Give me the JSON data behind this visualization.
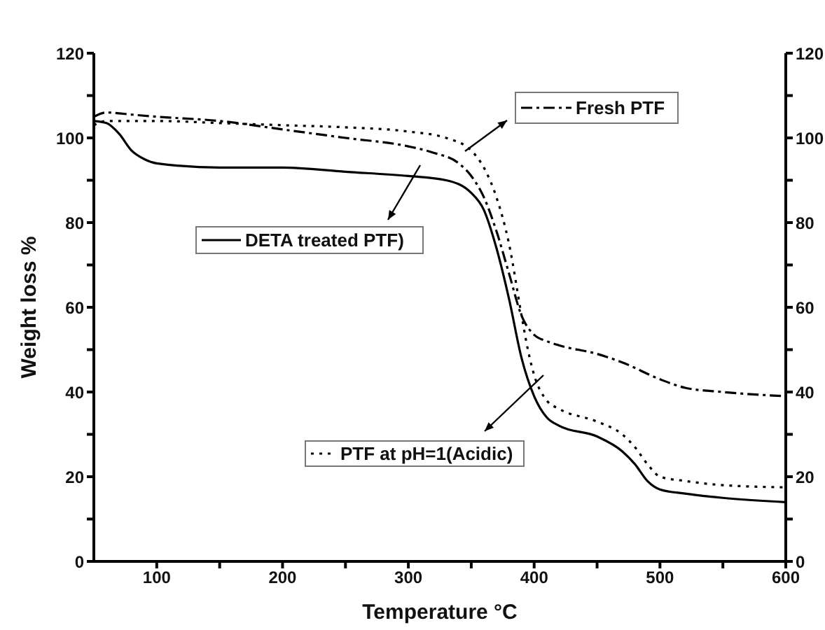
{
  "chart_data": {
    "type": "line",
    "xlabel": "Temperature °C",
    "ylabel": "Weight loss %",
    "xlim": [
      50,
      600
    ],
    "xticks": [
      100,
      {
        "value": 150,
        "label": null
      },
      200,
      {
        "value": 250,
        "label": null
      },
      300,
      {
        "value": 350,
        "label": null
      },
      400,
      {
        "value": 450,
        "label": null
      },
      500,
      {
        "value": 550,
        "label": null
      },
      600
    ],
    "ylim": [
      0,
      120
    ],
    "yticks": [
      0,
      {
        "value": 10,
        "label": null
      },
      20,
      {
        "value": 30,
        "label": null
      },
      40,
      {
        "value": 50,
        "label": null
      },
      60,
      {
        "value": 70,
        "label": null
      },
      80,
      {
        "value": 90,
        "label": null
      },
      100,
      {
        "value": 110,
        "label": null
      },
      120
    ],
    "y2lim": [
      0,
      120
    ],
    "y2ticks": [
      0,
      {
        "value": 10,
        "label": null
      },
      20,
      {
        "value": 30,
        "label": null
      },
      40,
      {
        "value": 50,
        "label": null
      },
      60,
      {
        "value": 70,
        "label": null
      },
      80,
      {
        "value": 90,
        "label": null
      },
      100,
      {
        "value": 110,
        "label": null
      },
      120
    ],
    "grid": false,
    "legend": "center",
    "marker": "none",
    "series": [
      {
        "name": "Fresh PTF",
        "color": "#000000",
        "line_style": "dashed",
        "x": [
          50,
          60,
          80,
          100,
          150,
          200,
          250,
          300,
          320,
          340,
          350,
          360,
          370,
          380,
          390,
          400,
          410,
          420,
          450,
          470,
          500,
          520,
          550,
          600
        ],
        "values": [
          105,
          106,
          105.5,
          105,
          104,
          102,
          100,
          98,
          96.5,
          94,
          91,
          86,
          78,
          68,
          58,
          53.5,
          52,
          51,
          49,
          47,
          43,
          41,
          40,
          39
        ]
      },
      {
        "name": "DETA treated PTF)",
        "color": "#000000",
        "line_style": "solid",
        "x": [
          50,
          60,
          70,
          80,
          90,
          100,
          150,
          200,
          250,
          300,
          330,
          350,
          360,
          370,
          380,
          390,
          400,
          410,
          420,
          450,
          470,
          480,
          490,
          500,
          520,
          550,
          600
        ],
        "values": [
          104,
          103.5,
          101,
          97,
          95,
          94,
          93,
          93,
          92,
          91,
          90,
          87,
          83,
          74,
          62,
          48,
          39,
          34,
          32,
          29.5,
          26,
          23,
          19,
          17,
          16,
          15,
          14
        ]
      },
      {
        "name": "PTF at pH=1(Acidic)",
        "color": "#000000",
        "line_style": "dotted",
        "x": [
          50,
          60,
          100,
          150,
          200,
          250,
          300,
          330,
          350,
          360,
          370,
          380,
          390,
          395,
          400,
          410,
          420,
          450,
          470,
          480,
          490,
          500,
          520,
          550,
          600
        ],
        "values": [
          103,
          104,
          104,
          103.5,
          103,
          102.5,
          101.5,
          100,
          97,
          93,
          86,
          75,
          58,
          50,
          44,
          38,
          36,
          33,
          30,
          27,
          23,
          20,
          19,
          18,
          17.5
        ]
      }
    ]
  }
}
